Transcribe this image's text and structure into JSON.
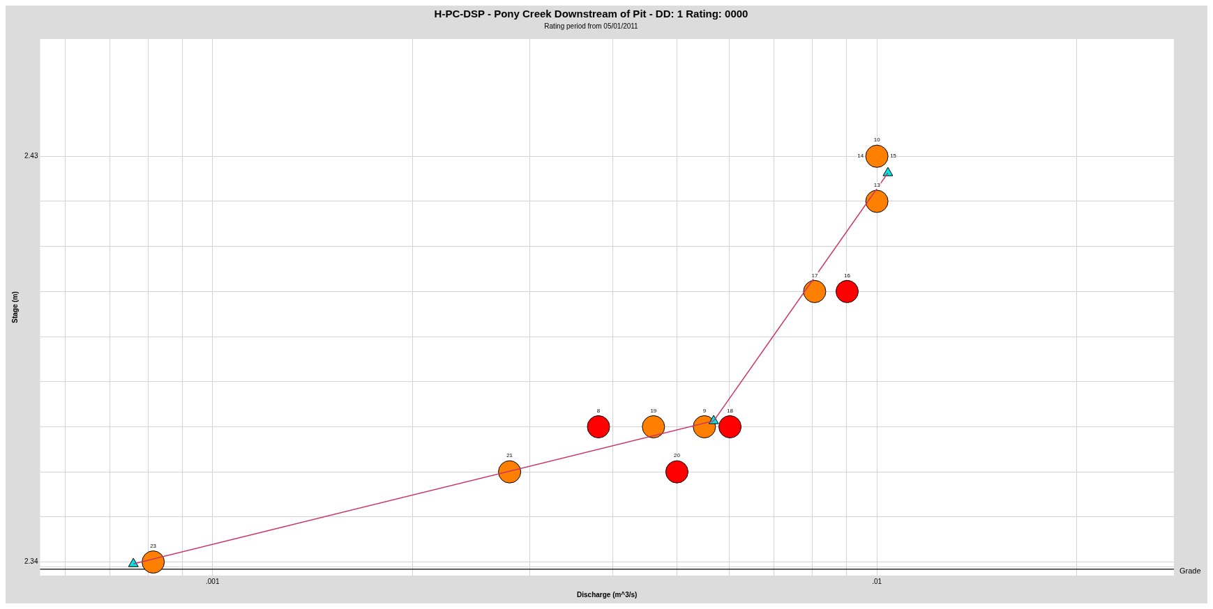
{
  "chart_data": {
    "type": "scatter",
    "title": "H-PC-DSP - Pony Creek Downstream of Pit - DD: 1 Rating: 0000",
    "subtitle": "Rating period from 05/01/2011",
    "xlabel": "Discharge (m^3/s)",
    "ylabel": "Stage (m)",
    "series": [
      {
        "type": "line",
        "color": "#cc3366",
        "marker": "none",
        "x": [
          0.00076,
          0.00568,
          0.01039
        ],
        "values": [
          2.3396,
          2.3713,
          2.4263
        ]
      },
      {
        "color": "#ff8000",
        "marker": "circle",
        "x": [
          0.000814,
          0.0028,
          0.00461,
          0.0055,
          0.00806,
          0.01,
          0.01
        ],
        "values": [
          2.34,
          2.36,
          2.37,
          2.37,
          2.4,
          2.43,
          2.42
        ]
      },
      {
        "color": "#ff0000",
        "marker": "circle",
        "x": [
          0.00381,
          0.00601,
          0.005,
          0.00902
        ],
        "values": [
          2.37,
          2.37,
          2.36,
          2.4
        ]
      },
      {
        "color": "#00e5e5",
        "marker": "triangle",
        "x": [
          0.00076,
          0.00568,
          0.01039
        ],
        "values": [
          2.3396,
          2.3713,
          2.4263
        ]
      }
    ],
    "log": "x",
    "xlim": [
      0.00055,
      0.028
    ],
    "xticks": [
      {
        "value": 0.0006,
        "label": null
      },
      {
        "value": 0.0007,
        "label": null
      },
      {
        "value": 0.0008,
        "label": null
      },
      {
        "value": 0.0009,
        "label": null
      },
      {
        "value": 0.001,
        "label": ".001"
      },
      {
        "value": 0.002,
        "label": null
      },
      {
        "value": 0.003,
        "label": null
      },
      {
        "value": 0.004,
        "label": null
      },
      {
        "value": 0.005,
        "label": null
      },
      {
        "value": 0.006,
        "label": null
      },
      {
        "value": 0.007,
        "label": null
      },
      {
        "value": 0.008,
        "label": null
      },
      {
        "value": 0.009,
        "label": null
      },
      {
        "value": 0.01,
        "label": ".01"
      },
      {
        "value": 0.02,
        "label": null
      }
    ],
    "ylim": [
      2.337,
      2.456
    ],
    "yticks": [
      {
        "value": 2.339,
        "label": null
      },
      2.34,
      {
        "value": 2.35,
        "label": null
      },
      {
        "value": 2.36,
        "label": null
      },
      {
        "value": 2.37,
        "label": null
      },
      {
        "value": 2.38,
        "label": null
      },
      {
        "value": 2.39,
        "label": null
      },
      {
        "value": 2.4,
        "label": null
      },
      {
        "value": 2.41,
        "label": null
      },
      {
        "value": 2.42,
        "label": null
      },
      2.43
    ],
    "grid": true,
    "legend": false,
    "ref_lines": [
      {
        "axis": "y",
        "value": 2.3384,
        "label": "Grade",
        "color": "#000000"
      }
    ],
    "annotations": [
      {
        "text": "23",
        "x": 0.000814,
        "y": 2.34
      },
      {
        "text": "21",
        "x": 0.0028,
        "y": 2.36
      },
      {
        "text": "8",
        "x": 0.00381,
        "y": 2.37
      },
      {
        "text": "19",
        "x": 0.00461,
        "y": 2.37
      },
      {
        "text": "9",
        "x": 0.0055,
        "y": 2.37
      },
      {
        "text": "18",
        "x": 0.00601,
        "y": 2.37
      },
      {
        "text": "20",
        "x": 0.005,
        "y": 2.36
      },
      {
        "text": "17",
        "x": 0.00806,
        "y": 2.4
      },
      {
        "text": "16",
        "x": 0.00902,
        "y": 2.4
      },
      {
        "text": "10",
        "x": 0.01,
        "y": 2.43
      },
      {
        "text": "14",
        "x": 0.01,
        "y": 2.43
      },
      {
        "text": "15",
        "x": 0.01,
        "y": 2.43
      },
      {
        "text": "13",
        "x": 0.01,
        "y": 2.42
      }
    ]
  }
}
